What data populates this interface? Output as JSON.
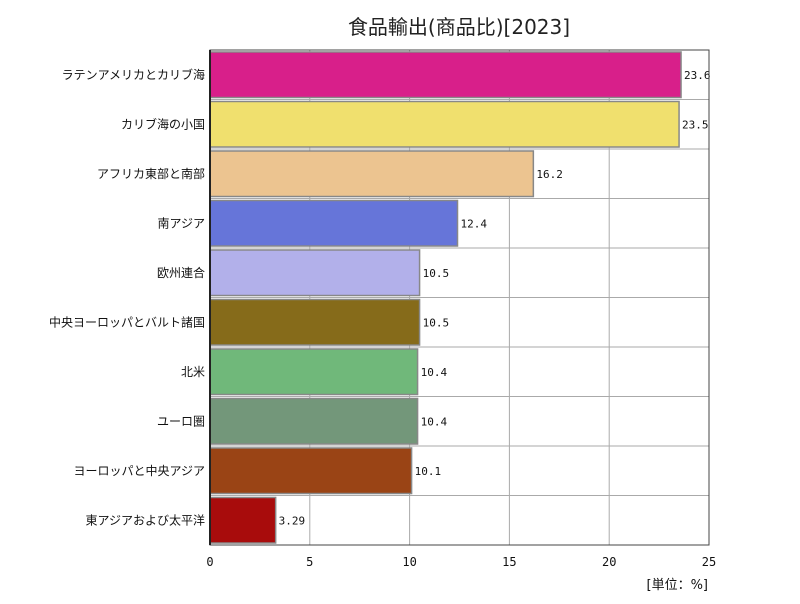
{
  "chart_data": {
    "type": "bar",
    "orientation": "horizontal",
    "title": "食品輸出(商品比)[2023]",
    "unit": "[単位：%]",
    "categories": [
      "ラテンアメリカとカリブ海",
      "カリブ海の小国",
      "アフリカ東部と南部",
      "南アジア",
      "欧州連合",
      "中央ヨーロッパとバルト諸国",
      "北米",
      "ユーロ圏",
      "ヨーロッパと中央アジア",
      "東アジアおよび太平洋"
    ],
    "values": [
      23.6,
      23.5,
      16.2,
      12.4,
      10.5,
      10.5,
      10.4,
      10.4,
      10.1,
      3.29
    ],
    "value_labels": [
      "23.6",
      "23.5",
      "16.2",
      "12.4",
      "10.5",
      "10.5",
      "10.4",
      "10.4",
      "10.1",
      "3.29"
    ],
    "colors": [
      "#d81f8a",
      "#f0e06e",
      "#ecc490",
      "#6675d9",
      "#b2b0ea",
      "#866b1a",
      "#70b87a",
      "#73977a",
      "#9a4415",
      "#a80c0c"
    ],
    "xlim": [
      0,
      25
    ],
    "xticks": [
      0,
      5,
      10,
      15,
      20,
      25
    ],
    "xtick_labels": [
      "0",
      "5",
      "10",
      "15",
      "20",
      "25"
    ],
    "grid": true,
    "grid_color": "#aaaaaa",
    "bar_edge_color": "#888888"
  }
}
